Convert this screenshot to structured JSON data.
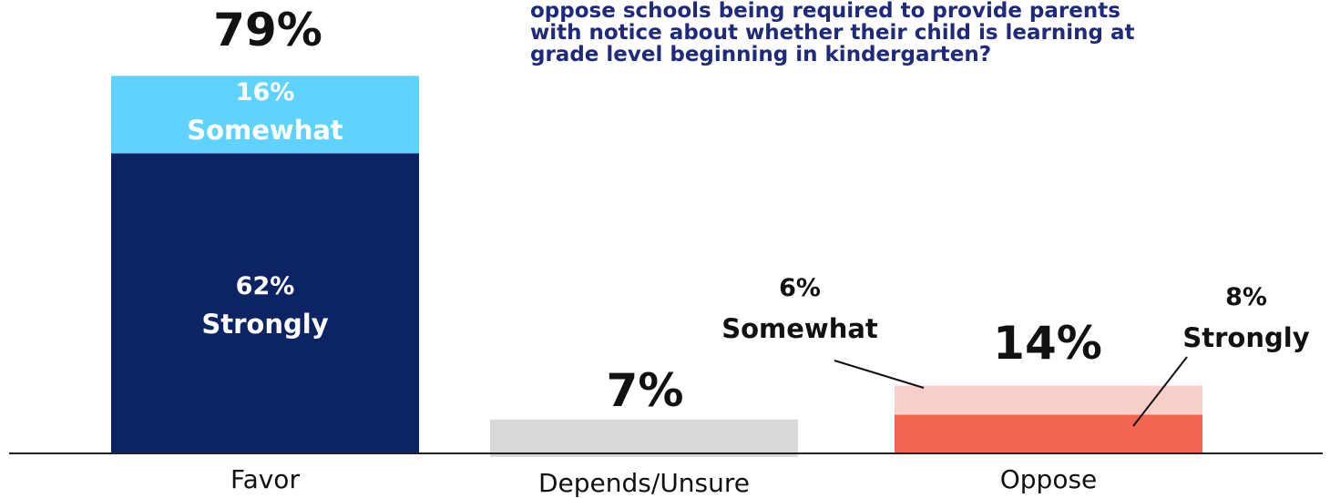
{
  "question_lines": [
    "oppose schools being required to provide parents",
    "with notice about whether their child is learning at",
    "grade level beginning in kindergarten?"
  ],
  "colors": {
    "strongly_favor": "#0c2463",
    "somewhat_favor": "#5fd3fd",
    "depends": "#d9d9d9",
    "somewhat_oppose": "#f8d0cb",
    "strongly_oppose": "#f06651",
    "axis": "#222222",
    "text": "#111111",
    "question": "#1f2a7a"
  },
  "chart_data": {
    "type": "bar",
    "stacked": true,
    "categories": [
      "Favor",
      "Depends/Unsure",
      "Oppose"
    ],
    "totals": [
      79,
      7,
      14
    ],
    "total_labels": [
      "79%",
      "7%",
      "14%"
    ],
    "ylim": [
      0,
      79
    ],
    "series": [
      {
        "key": "strongly",
        "values": [
          62,
          7,
          8
        ],
        "value_labels": [
          "62%",
          "",
          "8%"
        ],
        "name_labels": [
          "Strongly",
          "",
          "Strongly"
        ]
      },
      {
        "key": "somewhat",
        "values": [
          16,
          0,
          6
        ],
        "value_labels": [
          "16%",
          "",
          "6%"
        ],
        "name_labels": [
          "Somewhat",
          "",
          "Somewhat"
        ]
      }
    ]
  }
}
